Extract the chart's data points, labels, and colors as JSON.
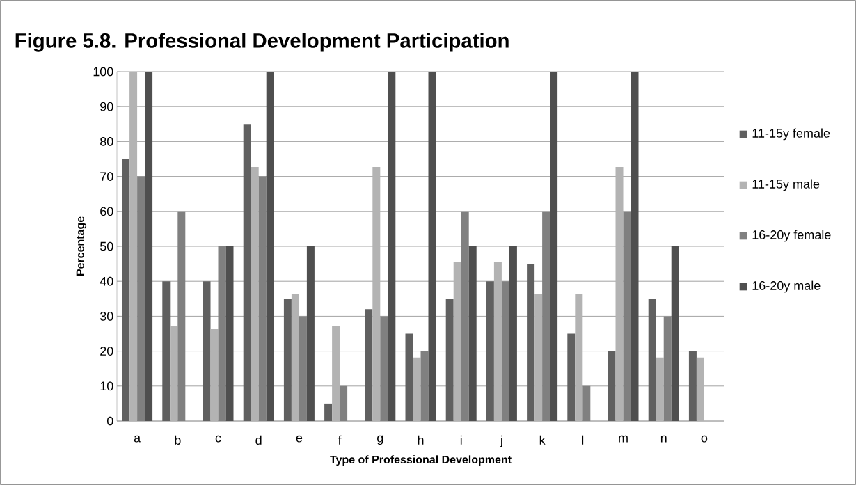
{
  "chart_data": {
    "type": "bar",
    "title": "Figure 5.8.  Professional Development Participation",
    "xlabel": "Type of Professional Development",
    "ylabel": "Percentage",
    "categories": [
      "a",
      "b",
      "c",
      "d",
      "e",
      "f",
      "g",
      "h",
      "i",
      "j",
      "k",
      "l",
      "m",
      "n",
      "o"
    ],
    "series": [
      {
        "name": "11-15y female",
        "color": "#606060",
        "values": [
          75,
          40,
          40,
          85,
          35,
          5,
          32,
          25,
          35,
          40,
          45,
          25,
          20,
          35,
          20
        ]
      },
      {
        "name": "11-15y male",
        "color": "#b3b3b3",
        "values": [
          100,
          27.3,
          26.3,
          72.7,
          36.4,
          27.3,
          72.7,
          18.2,
          45.5,
          45.5,
          36.4,
          36.4,
          72.7,
          18.2,
          18.2
        ]
      },
      {
        "name": "16-20y female",
        "color": "#808080",
        "values": [
          70,
          60,
          50,
          70,
          30,
          10,
          30,
          20,
          60,
          40,
          60,
          10,
          60,
          30,
          null
        ]
      },
      {
        "name": "16-20y male",
        "color": "#4f4f4f",
        "values": [
          100,
          null,
          50,
          100,
          50,
          null,
          100,
          100,
          50,
          50,
          100,
          null,
          100,
          50,
          null
        ]
      }
    ],
    "ylim": [
      0,
      100
    ],
    "yticks": [
      0,
      10,
      20,
      30,
      40,
      50,
      60,
      70,
      80,
      90,
      100
    ],
    "grid": "y",
    "legend": "right"
  }
}
